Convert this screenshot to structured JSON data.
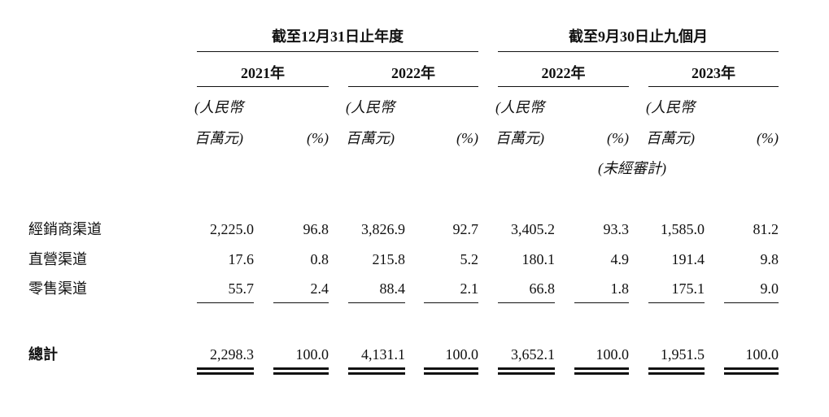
{
  "header": {
    "groups": [
      {
        "title": "截至12月31日止年度",
        "years": [
          "2021年",
          "2022年"
        ]
      },
      {
        "title": "截至9月30日止九個月",
        "years": [
          "2022年",
          "2023年"
        ]
      }
    ],
    "unit_amount_line1": "(人民幣",
    "unit_amount_line2": "百萬元)",
    "unit_percent": "(%)",
    "unaudited": "(未經審計)"
  },
  "table": {
    "rows": [
      {
        "label": "經銷商渠道",
        "values": [
          "2,225.0",
          "96.8",
          "3,826.9",
          "92.7",
          "3,405.2",
          "93.3",
          "1,585.0",
          "81.2"
        ]
      },
      {
        "label": "直營渠道",
        "values": [
          "17.6",
          "0.8",
          "215.8",
          "5.2",
          "180.1",
          "4.9",
          "191.4",
          "9.8"
        ]
      },
      {
        "label": "零售渠道",
        "values": [
          "55.7",
          "2.4",
          "88.4",
          "2.1",
          "66.8",
          "1.8",
          "175.1",
          "9.0"
        ]
      }
    ],
    "total": {
      "label": "總計",
      "values": [
        "2,298.3",
        "100.0",
        "4,131.1",
        "100.0",
        "3,652.1",
        "100.0",
        "1,951.5",
        "100.0"
      ]
    }
  }
}
